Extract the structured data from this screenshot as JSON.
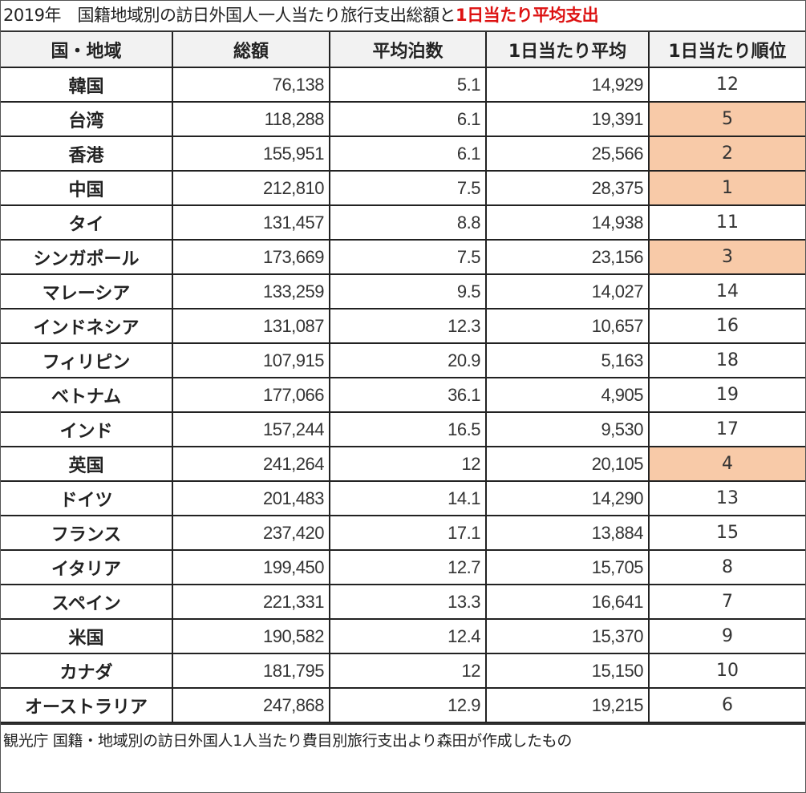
{
  "title": {
    "prefix": "2019年　国籍地域別の訪日外国人一人当たり旅行支出総額と",
    "highlight": "1日当たり平均支出"
  },
  "table": {
    "headers": [
      "国・地域",
      "総額",
      "平均泊数",
      "1日当たり平均",
      "1日当たり順位"
    ],
    "rows": [
      {
        "region": "韓国",
        "total": "76,138",
        "nights": "5.1",
        "daily": "14,929",
        "rank": "12",
        "highlight": false
      },
      {
        "region": "台湾",
        "total": "118,288",
        "nights": "6.1",
        "daily": "19,391",
        "rank": "5",
        "highlight": true
      },
      {
        "region": "香港",
        "total": "155,951",
        "nights": "6.1",
        "daily": "25,566",
        "rank": "2",
        "highlight": true
      },
      {
        "region": "中国",
        "total": "212,810",
        "nights": "7.5",
        "daily": "28,375",
        "rank": "1",
        "highlight": true
      },
      {
        "region": "タイ",
        "total": "131,457",
        "nights": "8.8",
        "daily": "14,938",
        "rank": "11",
        "highlight": false
      },
      {
        "region": "シンガポール",
        "total": "173,669",
        "nights": "7.5",
        "daily": "23,156",
        "rank": "3",
        "highlight": true
      },
      {
        "region": "マレーシア",
        "total": "133,259",
        "nights": "9.5",
        "daily": "14,027",
        "rank": "14",
        "highlight": false
      },
      {
        "region": "インドネシア",
        "total": "131,087",
        "nights": "12.3",
        "daily": "10,657",
        "rank": "16",
        "highlight": false
      },
      {
        "region": "フィリピン",
        "total": "107,915",
        "nights": "20.9",
        "daily": "5,163",
        "rank": "18",
        "highlight": false
      },
      {
        "region": "ベトナム",
        "total": "177,066",
        "nights": "36.1",
        "daily": "4,905",
        "rank": "19",
        "highlight": false
      },
      {
        "region": "インド",
        "total": "157,244",
        "nights": "16.5",
        "daily": "9,530",
        "rank": "17",
        "highlight": false
      },
      {
        "region": "英国",
        "total": "241,264",
        "nights": "12",
        "daily": "20,105",
        "rank": "4",
        "highlight": true
      },
      {
        "region": "ドイツ",
        "total": "201,483",
        "nights": "14.1",
        "daily": "14,290",
        "rank": "13",
        "highlight": false
      },
      {
        "region": "フランス",
        "total": "237,420",
        "nights": "17.1",
        "daily": "13,884",
        "rank": "15",
        "highlight": false
      },
      {
        "region": "イタリア",
        "total": "199,450",
        "nights": "12.7",
        "daily": "15,705",
        "rank": "8",
        "highlight": false
      },
      {
        "region": "スペイン",
        "total": "221,331",
        "nights": "13.3",
        "daily": "16,641",
        "rank": "7",
        "highlight": false
      },
      {
        "region": "米国",
        "total": "190,582",
        "nights": "12.4",
        "daily": "15,370",
        "rank": "9",
        "highlight": false
      },
      {
        "region": "カナダ",
        "total": "181,795",
        "nights": "12",
        "daily": "15,150",
        "rank": "10",
        "highlight": false
      },
      {
        "region": "オーストラリア",
        "total": "247,868",
        "nights": "12.9",
        "daily": "19,215",
        "rank": "6",
        "highlight": false
      }
    ]
  },
  "footer": "観光庁 国籍・地域別の訪日外国人1人当たり費目別旅行支出より森田が作成したもの",
  "colors": {
    "highlight": "#f8caa8",
    "title_accent": "#dd1111",
    "header_bg": "#f2f2f2"
  }
}
